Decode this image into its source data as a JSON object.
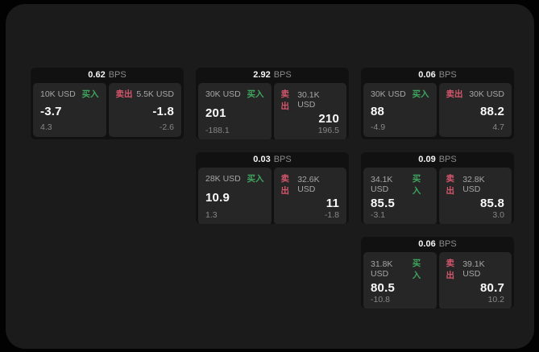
{
  "labels": {
    "bps_unit": "BPS",
    "buy": "买入",
    "sell": "卖出"
  },
  "colors": {
    "page_bg": "#020202",
    "panel_bg": "#1b1b1b",
    "card_bg": "#111111",
    "tile_bg": "#262626",
    "buy_green": "#3fa55e",
    "sell_red": "#d4566b",
    "text_primary": "#fafafa",
    "text_muted": "#878787"
  },
  "grid": {
    "columns": 3,
    "rows": 3
  },
  "cards": [
    {
      "bps": "0.62",
      "col": 1,
      "row": 1,
      "buy": {
        "amount": "10K USD",
        "main": "-3.7",
        "sub": "4.3"
      },
      "sell": {
        "amount": "5.5K USD",
        "main": "-1.8",
        "sub": "-2.6"
      }
    },
    {
      "bps": "2.92",
      "col": 2,
      "row": 1,
      "buy": {
        "amount": "30K USD",
        "main": "201",
        "sub": "-188.1"
      },
      "sell": {
        "amount": "30.1K USD",
        "main": "210",
        "sub": "196.5"
      }
    },
    {
      "bps": "0.06",
      "col": 3,
      "row": 1,
      "buy": {
        "amount": "30K USD",
        "main": "88",
        "sub": "-4.9"
      },
      "sell": {
        "amount": "30K USD",
        "main": "88.2",
        "sub": "4.7"
      }
    },
    {
      "bps": "0.03",
      "col": 2,
      "row": 2,
      "buy": {
        "amount": "28K USD",
        "main": "10.9",
        "sub": "1.3"
      },
      "sell": {
        "amount": "32.6K USD",
        "main": "11",
        "sub": "-1.8"
      }
    },
    {
      "bps": "0.09",
      "col": 3,
      "row": 2,
      "buy": {
        "amount": "34.1K USD",
        "main": "85.5",
        "sub": "-3.1"
      },
      "sell": {
        "amount": "32.8K USD",
        "main": "85.8",
        "sub": "3.0"
      }
    },
    {
      "bps": "0.06",
      "col": 3,
      "row": 3,
      "buy": {
        "amount": "31.8K USD",
        "main": "80.5",
        "sub": "-10.8"
      },
      "sell": {
        "amount": "39.1K USD",
        "main": "80.7",
        "sub": "10.2"
      }
    }
  ]
}
